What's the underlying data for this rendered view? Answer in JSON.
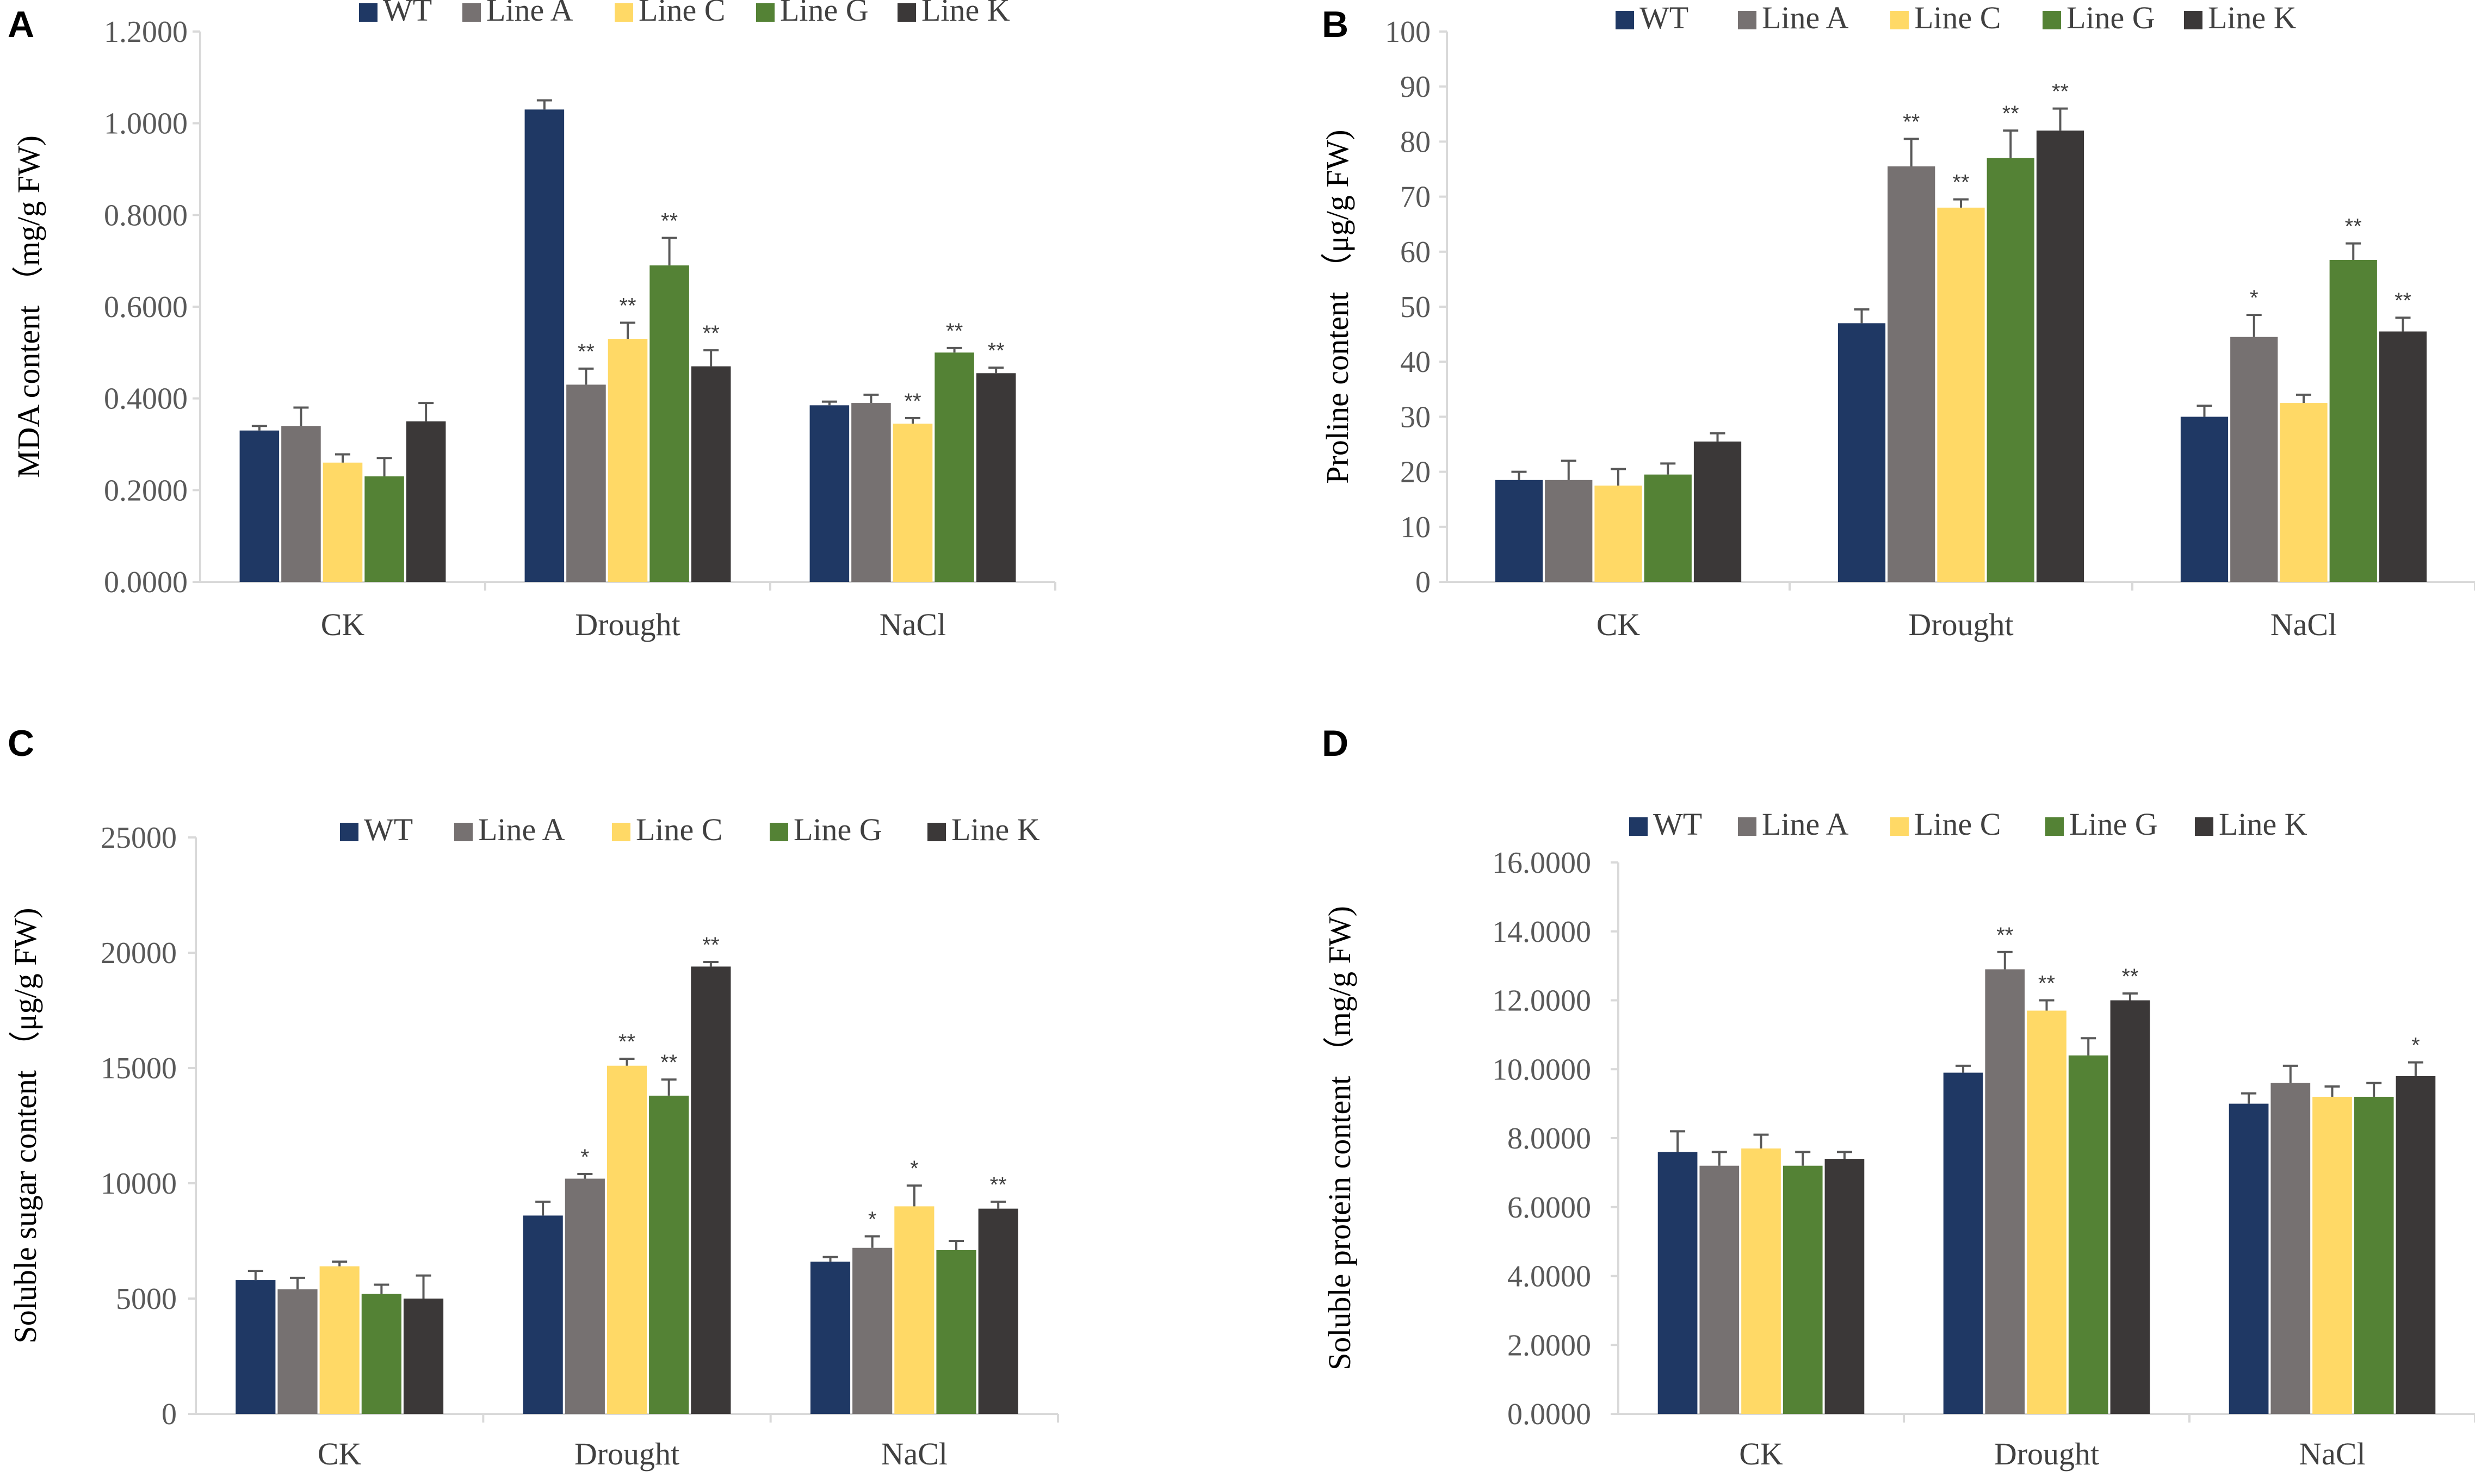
{
  "colors": {
    "WT": "#1f3864",
    "Line A": "#767171",
    "Line C": "#ffd966",
    "Line G": "#548235",
    "Line K": "#3b3838",
    "axis": "#d9d9d9",
    "error_bar": "#595959"
  },
  "chart_data": [
    {
      "panel": "A",
      "type": "bar",
      "ylabel": "MDA content （mg/g FW)",
      "xlabel": "",
      "ylim": [
        0,
        1.2
      ],
      "yticks": [
        "0.0000",
        "0.2000",
        "0.4000",
        "0.6000",
        "0.8000",
        "1.0000",
        "1.2000"
      ],
      "categories": [
        "CK",
        "Drought",
        "NaCl"
      ],
      "legend": [
        "WT",
        "Line A",
        "Line C",
        "Line G",
        "Line K"
      ],
      "legend_position": "top",
      "series": [
        {
          "name": "WT",
          "values": [
            0.33,
            1.03,
            0.385
          ],
          "errors": [
            0.01,
            0.02,
            0.008
          ],
          "sig": [
            "",
            "",
            ""
          ]
        },
        {
          "name": "Line A",
          "values": [
            0.34,
            0.43,
            0.39
          ],
          "errors": [
            0.04,
            0.035,
            0.018
          ],
          "sig": [
            "",
            "**",
            ""
          ]
        },
        {
          "name": "Line C",
          "values": [
            0.26,
            0.53,
            0.345
          ],
          "errors": [
            0.018,
            0.035,
            0.012
          ],
          "sig": [
            "",
            "**",
            "**"
          ]
        },
        {
          "name": "Line G",
          "values": [
            0.23,
            0.69,
            0.5
          ],
          "errors": [
            0.04,
            0.06,
            0.01
          ],
          "sig": [
            "",
            "**",
            "**"
          ]
        },
        {
          "name": "Line K",
          "values": [
            0.35,
            0.47,
            0.455
          ],
          "errors": [
            0.04,
            0.035,
            0.012
          ],
          "sig": [
            "",
            "**",
            "**"
          ]
        }
      ]
    },
    {
      "panel": "B",
      "type": "bar",
      "ylabel": "Proline content （μg/g FW)",
      "xlabel": "",
      "ylim": [
        0,
        100
      ],
      "yticks": [
        "0",
        "10",
        "20",
        "30",
        "40",
        "50",
        "60",
        "70",
        "80",
        "90",
        "100"
      ],
      "categories": [
        "CK",
        "Drought",
        "NaCl"
      ],
      "legend": [
        "WT",
        "Line A",
        "Line C",
        "Line G",
        "Line K"
      ],
      "legend_position": "top",
      "series": [
        {
          "name": "WT",
          "values": [
            18.5,
            47,
            30
          ],
          "errors": [
            1.5,
            2.5,
            2
          ],
          "sig": [
            "",
            "",
            ""
          ]
        },
        {
          "name": "Line A",
          "values": [
            18.5,
            75.5,
            44.5
          ],
          "errors": [
            3.5,
            5,
            4
          ],
          "sig": [
            "",
            "**",
            "*"
          ]
        },
        {
          "name": "Line C",
          "values": [
            17.5,
            68,
            32.5
          ],
          "errors": [
            3,
            1.5,
            1.5
          ],
          "sig": [
            "",
            "**",
            ""
          ]
        },
        {
          "name": "Line G",
          "values": [
            19.5,
            77,
            58.5
          ],
          "errors": [
            2,
            5,
            3
          ],
          "sig": [
            "",
            "**",
            "**"
          ]
        },
        {
          "name": "Line K",
          "values": [
            25.5,
            82,
            45.5
          ],
          "errors": [
            1.5,
            4,
            2.5
          ],
          "sig": [
            "",
            "**",
            "**"
          ]
        }
      ]
    },
    {
      "panel": "C",
      "type": "bar",
      "ylabel": "Soluble sugar content （μg/g FW)",
      "xlabel": "",
      "ylim": [
        0,
        25000
      ],
      "yticks": [
        "0",
        "5000",
        "10000",
        "15000",
        "20000",
        "25000"
      ],
      "categories": [
        "CK",
        "Drought",
        "NaCl"
      ],
      "legend": [
        "WT",
        "Line A",
        "Line C",
        "Line G",
        "Line K"
      ],
      "legend_position": "top",
      "series": [
        {
          "name": "WT",
          "values": [
            5800,
            8600,
            6600
          ],
          "errors": [
            400,
            600,
            200
          ],
          "sig": [
            "",
            "",
            ""
          ]
        },
        {
          "name": "Line A",
          "values": [
            5400,
            10200,
            7200
          ],
          "errors": [
            500,
            200,
            500
          ],
          "sig": [
            "",
            "*",
            "*"
          ]
        },
        {
          "name": "Line C",
          "values": [
            6400,
            15100,
            9000
          ],
          "errors": [
            200,
            300,
            900
          ],
          "sig": [
            "",
            "**",
            "*"
          ]
        },
        {
          "name": "Line G",
          "values": [
            5200,
            13800,
            7100
          ],
          "errors": [
            400,
            700,
            400
          ],
          "sig": [
            "",
            "**",
            ""
          ]
        },
        {
          "name": "Line K",
          "values": [
            5000,
            19400,
            8900
          ],
          "errors": [
            1000,
            200,
            300
          ],
          "sig": [
            "",
            "**",
            "**"
          ]
        }
      ]
    },
    {
      "panel": "D",
      "type": "bar",
      "ylabel": "Soluble protein content （mg/g FW)",
      "xlabel": "",
      "ylim": [
        0,
        16
      ],
      "yticks": [
        "0.0000",
        "2.0000",
        "4.0000",
        "6.0000",
        "8.0000",
        "10.0000",
        "12.0000",
        "14.0000",
        "16.0000"
      ],
      "categories": [
        "CK",
        "Drought",
        "NaCl"
      ],
      "legend": [
        "WT",
        "Line A",
        "Line C",
        "Line G",
        "Line K"
      ],
      "legend_position": "top",
      "series": [
        {
          "name": "WT",
          "values": [
            7.6,
            9.9,
            9.0
          ],
          "errors": [
            0.6,
            0.2,
            0.3
          ],
          "sig": [
            "",
            "",
            ""
          ]
        },
        {
          "name": "Line A",
          "values": [
            7.2,
            12.9,
            9.6
          ],
          "errors": [
            0.4,
            0.5,
            0.5
          ],
          "sig": [
            "",
            "**",
            ""
          ]
        },
        {
          "name": "Line C",
          "values": [
            7.7,
            11.7,
            9.2
          ],
          "errors": [
            0.4,
            0.3,
            0.3
          ],
          "sig": [
            "",
            "**",
            ""
          ]
        },
        {
          "name": "Line G",
          "values": [
            7.2,
            10.4,
            9.2
          ],
          "errors": [
            0.4,
            0.5,
            0.4
          ],
          "sig": [
            "",
            "",
            ""
          ]
        },
        {
          "name": "Line K",
          "values": [
            7.4,
            12.0,
            9.8
          ],
          "errors": [
            0.2,
            0.2,
            0.4
          ],
          "sig": [
            "",
            "**",
            "*"
          ]
        }
      ]
    }
  ]
}
